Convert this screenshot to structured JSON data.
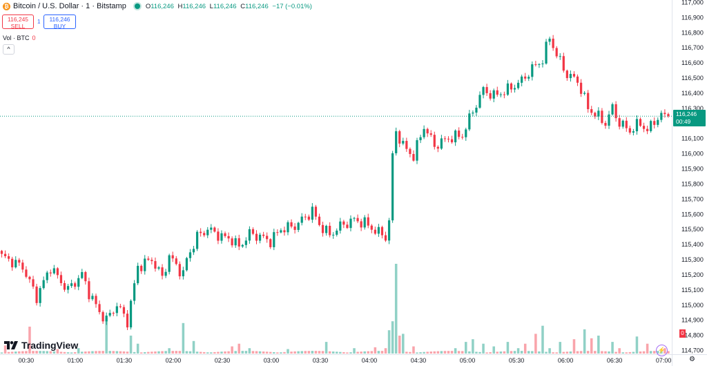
{
  "header": {
    "coin_glyph": "₿",
    "title": "Bitcoin / U.S. Dollar · 1 · Bitstamp",
    "ohlc": {
      "o_label": "O",
      "o": "116,246",
      "h_label": "H",
      "h": "116,246",
      "l_label": "L",
      "l": "116,246",
      "c_label": "C",
      "c": "116,246",
      "change": "−17 (−0.01%)"
    }
  },
  "trade": {
    "sell_price": "116,245",
    "sell_label": "SELL",
    "spread": "1",
    "buy_price": "116,246",
    "buy_label": "BUY"
  },
  "volume_legend": {
    "label": "Vol · BTC",
    "value": "0"
  },
  "collapse_glyph": "^",
  "logo_text": "TradingView",
  "last_price": {
    "price": "116,246",
    "countdown": "00:49"
  },
  "volume_tag": "0",
  "bolt_glyph": "⚡",
  "settings_glyph": "⚙",
  "colors": {
    "up": "#089981",
    "down": "#f23645",
    "grid": "#f0f3fa",
    "last_line": "#089981",
    "text": "#131722"
  },
  "chart_data": {
    "type": "candlestick",
    "ylim": [
      114700,
      117000
    ],
    "yticks": [
      "117,000",
      "116,900",
      "116,800",
      "116,700",
      "116,600",
      "116,500",
      "116,400",
      "116,300",
      "116,100",
      "116,000",
      "115,900",
      "115,800",
      "115,700",
      "115,600",
      "115,500",
      "115,400",
      "115,300",
      "115,200",
      "115,100",
      "115,000",
      "114,900",
      "114,800",
      "114,700"
    ],
    "ytick_values": [
      117000,
      116900,
      116800,
      116700,
      116600,
      116500,
      116400,
      116300,
      116100,
      116000,
      115900,
      115800,
      115700,
      115600,
      115500,
      115400,
      115300,
      115200,
      115100,
      115000,
      114900,
      114800,
      114700
    ],
    "xticks": [
      "00:30",
      "01:00",
      "01:30",
      "02:00",
      "02:30",
      "03:00",
      "03:30",
      "04:00",
      "04:30",
      "05:00",
      "05:30",
      "06:00",
      "06:30",
      "07:00"
    ],
    "time_start": "00:14",
    "time_end": "07:05",
    "last_price": 116246,
    "price_path": [
      [
        0,
        115320
      ],
      [
        6,
        115250
      ],
      [
        10,
        115050
      ],
      [
        14,
        115250
      ],
      [
        17,
        115150
      ],
      [
        19,
        115100
      ],
      [
        23,
        115200
      ],
      [
        25,
        115080
      ],
      [
        28,
        114950
      ],
      [
        30,
        114900
      ],
      [
        33,
        115000
      ],
      [
        36,
        114890
      ],
      [
        39,
        115250
      ],
      [
        43,
        115300
      ],
      [
        46,
        115180
      ],
      [
        48,
        115320
      ],
      [
        52,
        115200
      ],
      [
        53,
        115300
      ],
      [
        56,
        115450
      ],
      [
        59,
        115500
      ],
      [
        63,
        115450
      ],
      [
        66,
        115430
      ],
      [
        68,
        115380
      ],
      [
        71,
        115470
      ],
      [
        74,
        115450
      ],
      [
        77,
        115420
      ],
      [
        80,
        115500
      ],
      [
        84,
        115520
      ],
      [
        86,
        115560
      ],
      [
        89,
        115620
      ],
      [
        91,
        115530
      ],
      [
        94,
        115460
      ],
      [
        97,
        115520
      ],
      [
        101,
        115560
      ],
      [
        104,
        115540
      ],
      [
        107,
        115490
      ],
      [
        110,
        115450
      ],
      [
        111,
        115550
      ],
      [
        112,
        115980
      ],
      [
        113,
        116150
      ],
      [
        115,
        116050
      ],
      [
        118,
        115980
      ],
      [
        121,
        116180
      ],
      [
        124,
        116050
      ],
      [
        128,
        116100
      ],
      [
        132,
        116120
      ],
      [
        135,
        116280
      ],
      [
        138,
        116420
      ],
      [
        141,
        116380
      ],
      [
        145,
        116420
      ],
      [
        149,
        116480
      ],
      [
        152,
        116560
      ],
      [
        155,
        116620
      ],
      [
        157,
        116770
      ],
      [
        159,
        116650
      ],
      [
        162,
        116520
      ],
      [
        165,
        116480
      ],
      [
        168,
        116300
      ],
      [
        171,
        116240
      ],
      [
        173,
        116200
      ],
      [
        175,
        116300
      ],
      [
        177,
        116200
      ],
      [
        180,
        116150
      ],
      [
        183,
        116200
      ],
      [
        185,
        116150
      ],
      [
        188,
        116240
      ],
      [
        190,
        116250
      ],
      [
        191,
        116246
      ]
    ],
    "volume_scale_max": 100,
    "volume_spikes": [
      [
        1,
        9
      ],
      [
        8,
        30
      ],
      [
        16,
        5
      ],
      [
        22,
        6
      ],
      [
        30,
        40
      ],
      [
        37,
        20
      ],
      [
        39,
        11
      ],
      [
        48,
        6
      ],
      [
        52,
        34
      ],
      [
        55,
        14
      ],
      [
        66,
        8
      ],
      [
        68,
        11
      ],
      [
        71,
        6
      ],
      [
        82,
        5
      ],
      [
        93,
        13
      ],
      [
        101,
        6
      ],
      [
        107,
        7
      ],
      [
        110,
        6
      ],
      [
        111,
        26
      ],
      [
        112,
        36
      ],
      [
        113,
        100
      ],
      [
        114,
        20
      ],
      [
        115,
        22
      ],
      [
        118,
        8
      ],
      [
        130,
        6
      ],
      [
        133,
        13
      ],
      [
        135,
        16
      ],
      [
        138,
        11
      ],
      [
        141,
        8
      ],
      [
        145,
        13
      ],
      [
        148,
        6
      ],
      [
        150,
        11
      ],
      [
        153,
        22
      ],
      [
        155,
        31
      ],
      [
        157,
        6
      ],
      [
        160,
        13
      ],
      [
        164,
        16
      ],
      [
        167,
        27
      ],
      [
        169,
        17
      ],
      [
        171,
        20
      ],
      [
        175,
        13
      ],
      [
        177,
        6
      ],
      [
        182,
        19
      ],
      [
        185,
        11
      ],
      [
        190,
        6
      ]
    ]
  }
}
